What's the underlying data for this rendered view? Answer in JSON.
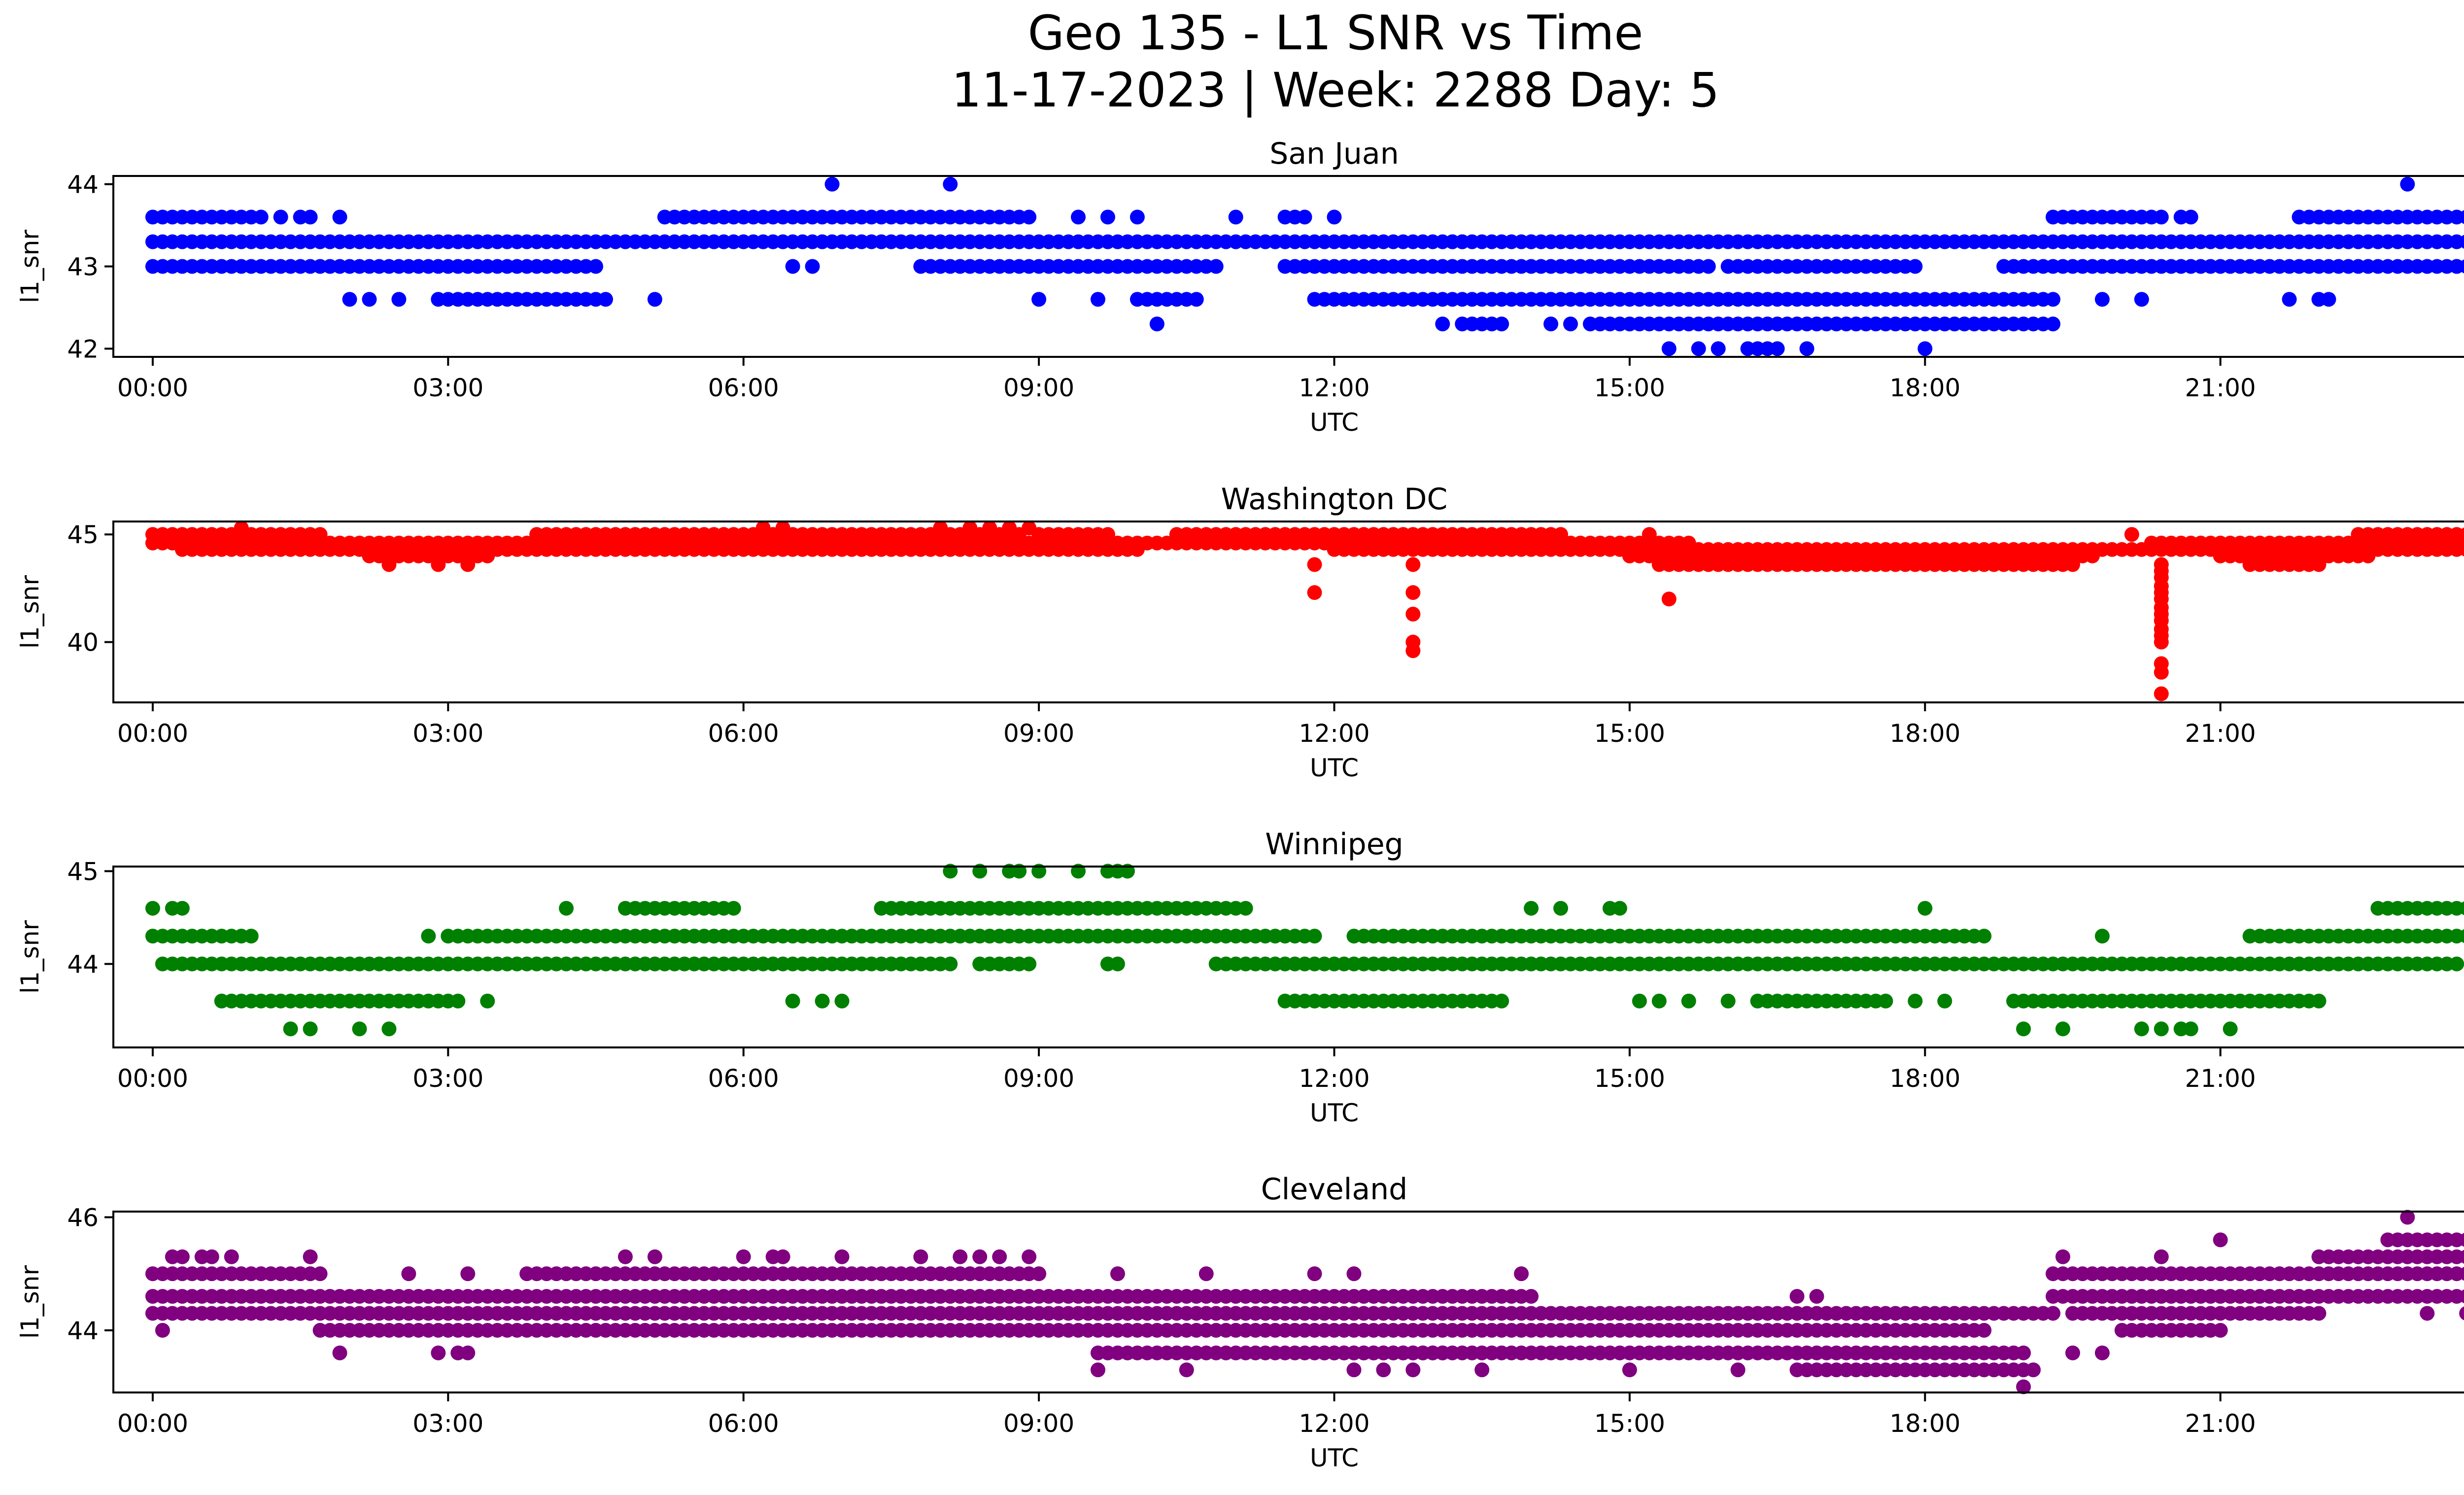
{
  "figure": {
    "title_line1": "Geo 135 - L1 SNR vs Time",
    "title_line2": "11-17-2023 | Week: 2288 Day: 5"
  },
  "chart_data": [
    {
      "type": "scatter",
      "title": "San Juan",
      "xlabel": "UTC",
      "ylabel": "l1_snr",
      "color": "#0000ff",
      "xlim": [
        "-00:24",
        "00:24"
      ],
      "ylim": [
        41.9,
        44.1
      ],
      "xticks": [
        "00:00",
        "03:00",
        "06:00",
        "09:00",
        "12:00",
        "15:00",
        "18:00",
        "21:00",
        "00:00"
      ],
      "yticks": [
        42,
        43,
        44
      ],
      "bands": [
        {
          "y": 43.3,
          "from": "00:00",
          "to": "24:00"
        },
        {
          "y": 43.6,
          "from": "00:00",
          "to": "01:06"
        },
        {
          "y": 43.6,
          "from": "05:12",
          "to": "08:54"
        },
        {
          "y": 43.6,
          "from": "19:18",
          "to": "20:24"
        },
        {
          "y": 43.6,
          "from": "21:48",
          "to": "24:00"
        },
        {
          "y": 43.0,
          "from": "00:00",
          "to": "04:30"
        },
        {
          "y": 43.0,
          "from": "07:48",
          "to": "10:48"
        },
        {
          "y": 43.0,
          "from": "11:30",
          "to": "15:48"
        },
        {
          "y": 43.0,
          "from": "16:00",
          "to": "17:54"
        },
        {
          "y": 43.0,
          "from": "18:48",
          "to": "23:48"
        },
        {
          "y": 42.6,
          "from": "02:54",
          "to": "04:36"
        },
        {
          "y": 42.6,
          "from": "10:00",
          "to": "10:36"
        },
        {
          "y": 42.6,
          "from": "11:48",
          "to": "19:18"
        },
        {
          "y": 42.3,
          "from": "14:36",
          "to": "19:18"
        },
        {
          "y": 42.3,
          "from": "13:18",
          "to": "13:42"
        }
      ],
      "points": [
        {
          "x": "06:54",
          "y": 44.0
        },
        {
          "x": "08:06",
          "y": 44.0
        },
        {
          "x": "22:54",
          "y": 44.0
        },
        {
          "x": "15:24",
          "y": 42.0
        },
        {
          "x": "15:42",
          "y": 42.0
        },
        {
          "x": "15:54",
          "y": 42.0
        },
        {
          "x": "16:12",
          "y": 42.0
        },
        {
          "x": "16:18",
          "y": 42.0
        },
        {
          "x": "16:24",
          "y": 42.0
        },
        {
          "x": "16:30",
          "y": 42.0
        },
        {
          "x": "16:48",
          "y": 42.0
        },
        {
          "x": "18:00",
          "y": 42.0
        },
        {
          "x": "10:12",
          "y": 42.3
        },
        {
          "x": "13:06",
          "y": 42.3
        },
        {
          "x": "14:12",
          "y": 42.3
        },
        {
          "x": "14:24",
          "y": 42.3
        },
        {
          "x": "13:12",
          "y": 43.3
        },
        {
          "x": "13:18",
          "y": 43.3
        },
        {
          "x": "14:00",
          "y": 43.3
        },
        {
          "x": "14:48",
          "y": 43.3
        },
        {
          "x": "09:00",
          "y": 42.6
        },
        {
          "x": "09:36",
          "y": 42.6
        },
        {
          "x": "05:06",
          "y": 42.6
        },
        {
          "x": "02:00",
          "y": 42.6
        },
        {
          "x": "02:12",
          "y": 42.6
        },
        {
          "x": "02:30",
          "y": 42.6
        },
        {
          "x": "19:48",
          "y": 42.6
        },
        {
          "x": "20:12",
          "y": 42.6
        },
        {
          "x": "21:42",
          "y": 42.6
        },
        {
          "x": "22:00",
          "y": 42.6
        },
        {
          "x": "22:06",
          "y": 42.6
        },
        {
          "x": "01:18",
          "y": 43.6
        },
        {
          "x": "01:30",
          "y": 43.6
        },
        {
          "x": "01:36",
          "y": 43.6
        },
        {
          "x": "01:54",
          "y": 43.6
        },
        {
          "x": "09:24",
          "y": 43.6
        },
        {
          "x": "09:42",
          "y": 43.6
        },
        {
          "x": "10:00",
          "y": 43.6
        },
        {
          "x": "11:00",
          "y": 43.6
        },
        {
          "x": "11:30",
          "y": 43.6
        },
        {
          "x": "11:36",
          "y": 43.6
        },
        {
          "x": "11:42",
          "y": 43.6
        },
        {
          "x": "12:00",
          "y": 43.6
        },
        {
          "x": "20:36",
          "y": 43.6
        },
        {
          "x": "20:42",
          "y": 43.6
        },
        {
          "x": "06:30",
          "y": 43.0
        },
        {
          "x": "06:42",
          "y": 43.0
        },
        {
          "x": "23:06",
          "y": 43.0
        },
        {
          "x": "23:24",
          "y": 43.0
        }
      ]
    },
    {
      "type": "scatter",
      "title": "Washington DC",
      "xlabel": "UTC",
      "ylabel": "l1_snr",
      "color": "#ff0000",
      "xlim": [
        "-00:24",
        "00:24"
      ],
      "ylim": [
        37.2,
        45.6
      ],
      "xticks": [
        "00:00",
        "03:00",
        "06:00",
        "09:00",
        "12:00",
        "15:00",
        "18:00",
        "21:00",
        "00:00"
      ],
      "yticks": [
        40,
        45
      ],
      "bands": [
        {
          "y": 45.0,
          "from": "00:00",
          "to": "01:42"
        },
        {
          "y": 45.0,
          "from": "03:54",
          "to": "08:48"
        },
        {
          "y": 45.0,
          "from": "09:00",
          "to": "09:42"
        },
        {
          "y": 45.0,
          "from": "10:24",
          "to": "14:18"
        },
        {
          "y": 45.0,
          "from": "22:24",
          "to": "24:00"
        },
        {
          "y": 44.6,
          "from": "00:00",
          "to": "15:36"
        },
        {
          "y": 44.6,
          "from": "20:18",
          "to": "24:00"
        },
        {
          "y": 44.3,
          "from": "00:18",
          "to": "10:00"
        },
        {
          "y": 44.3,
          "from": "12:00",
          "to": "24:00"
        },
        {
          "y": 44.0,
          "from": "02:12",
          "to": "03:24"
        },
        {
          "y": 44.0,
          "from": "15:00",
          "to": "19:42"
        },
        {
          "y": 44.0,
          "from": "21:00",
          "to": "22:30"
        },
        {
          "y": 43.6,
          "from": "15:18",
          "to": "19:30"
        },
        {
          "y": 43.6,
          "from": "21:18",
          "to": "22:00"
        }
      ],
      "points": [
        {
          "x": "11:48",
          "y": 43.6
        },
        {
          "x": "11:48",
          "y": 42.3
        },
        {
          "x": "12:48",
          "y": 43.6
        },
        {
          "x": "12:48",
          "y": 42.3
        },
        {
          "x": "12:48",
          "y": 41.3
        },
        {
          "x": "12:48",
          "y": 40.0
        },
        {
          "x": "12:48",
          "y": 39.6
        },
        {
          "x": "15:24",
          "y": 42.0
        },
        {
          "x": "20:24",
          "y": 43.6
        },
        {
          "x": "20:24",
          "y": 43.3
        },
        {
          "x": "20:24",
          "y": 43.0
        },
        {
          "x": "20:24",
          "y": 42.6
        },
        {
          "x": "20:24",
          "y": 42.3
        },
        {
          "x": "20:24",
          "y": 42.0
        },
        {
          "x": "20:24",
          "y": 41.6
        },
        {
          "x": "20:24",
          "y": 41.3
        },
        {
          "x": "20:24",
          "y": 41.0
        },
        {
          "x": "20:24",
          "y": 40.6
        },
        {
          "x": "20:24",
          "y": 40.3
        },
        {
          "x": "20:24",
          "y": 40.0
        },
        {
          "x": "20:24",
          "y": 39.0
        },
        {
          "x": "20:24",
          "y": 38.6
        },
        {
          "x": "20:24",
          "y": 37.6
        },
        {
          "x": "00:54",
          "y": 45.3
        },
        {
          "x": "06:12",
          "y": 45.3
        },
        {
          "x": "06:24",
          "y": 45.3
        },
        {
          "x": "08:00",
          "y": 45.3
        },
        {
          "x": "08:18",
          "y": 45.3
        },
        {
          "x": "08:30",
          "y": 45.3
        },
        {
          "x": "08:42",
          "y": 45.3
        },
        {
          "x": "08:54",
          "y": 45.3
        },
        {
          "x": "23:42",
          "y": 45.3
        },
        {
          "x": "02:24",
          "y": 43.6
        },
        {
          "x": "02:54",
          "y": 43.6
        },
        {
          "x": "03:12",
          "y": 43.6
        },
        {
          "x": "15:12",
          "y": 45.0
        },
        {
          "x": "20:06",
          "y": 45.0
        }
      ]
    },
    {
      "type": "scatter",
      "title": "Winnipeg",
      "xlabel": "UTC",
      "ylabel": "l1_snr",
      "color": "#008000",
      "xlim": [
        "-00:24",
        "00:24"
      ],
      "ylim": [
        43.1,
        45.05
      ],
      "xticks": [
        "00:00",
        "03:00",
        "06:00",
        "09:00",
        "12:00",
        "15:00",
        "18:00",
        "21:00",
        "00:00"
      ],
      "yticks": [
        44,
        45
      ],
      "bands": [
        {
          "y": 44.3,
          "from": "00:00",
          "to": "01:00"
        },
        {
          "y": 44.3,
          "from": "03:00",
          "to": "11:48"
        },
        {
          "y": 44.3,
          "from": "12:12",
          "to": "18:36"
        },
        {
          "y": 44.3,
          "from": "21:18",
          "to": "24:00"
        },
        {
          "y": 44.0,
          "from": "00:06",
          "to": "08:06"
        },
        {
          "y": 44.0,
          "from": "08:24",
          "to": "08:54"
        },
        {
          "y": 44.0,
          "from": "10:48",
          "to": "23:24"
        },
        {
          "y": 44.0,
          "from": "23:36",
          "to": "24:00"
        },
        {
          "y": 44.6,
          "from": "04:48",
          "to": "05:54"
        },
        {
          "y": 44.6,
          "from": "07:24",
          "to": "11:06"
        },
        {
          "y": 44.6,
          "from": "22:36",
          "to": "23:54"
        },
        {
          "y": 43.6,
          "from": "00:42",
          "to": "03:06"
        },
        {
          "y": 43.6,
          "from": "11:30",
          "to": "13:42"
        },
        {
          "y": 43.6,
          "from": "18:54",
          "to": "22:00"
        },
        {
          "y": 43.6,
          "from": "16:18",
          "to": "17:36"
        }
      ],
      "points": [
        {
          "x": "00:00",
          "y": 44.6
        },
        {
          "x": "00:12",
          "y": 44.6
        },
        {
          "x": "00:18",
          "y": 44.6
        },
        {
          "x": "04:12",
          "y": 44.6
        },
        {
          "x": "14:00",
          "y": 44.6
        },
        {
          "x": "14:18",
          "y": 44.6
        },
        {
          "x": "14:48",
          "y": 44.6
        },
        {
          "x": "14:54",
          "y": 44.6
        },
        {
          "x": "18:00",
          "y": 44.6
        },
        {
          "x": "08:06",
          "y": 45.0
        },
        {
          "x": "08:24",
          "y": 45.0
        },
        {
          "x": "08:42",
          "y": 45.0
        },
        {
          "x": "08:48",
          "y": 45.0
        },
        {
          "x": "09:00",
          "y": 45.0
        },
        {
          "x": "09:24",
          "y": 45.0
        },
        {
          "x": "09:42",
          "y": 45.0
        },
        {
          "x": "09:48",
          "y": 45.0
        },
        {
          "x": "09:54",
          "y": 45.0
        },
        {
          "x": "01:24",
          "y": 43.3
        },
        {
          "x": "01:36",
          "y": 43.3
        },
        {
          "x": "02:06",
          "y": 43.3
        },
        {
          "x": "02:24",
          "y": 43.3
        },
        {
          "x": "19:00",
          "y": 43.3
        },
        {
          "x": "19:24",
          "y": 43.3
        },
        {
          "x": "20:12",
          "y": 43.3
        },
        {
          "x": "20:24",
          "y": 43.3
        },
        {
          "x": "20:36",
          "y": 43.3
        },
        {
          "x": "20:42",
          "y": 43.3
        },
        {
          "x": "21:06",
          "y": 43.3
        },
        {
          "x": "02:48",
          "y": 44.3
        },
        {
          "x": "19:48",
          "y": 44.3
        },
        {
          "x": "03:24",
          "y": 43.6
        },
        {
          "x": "06:30",
          "y": 43.6
        },
        {
          "x": "06:48",
          "y": 43.6
        },
        {
          "x": "07:00",
          "y": 43.6
        },
        {
          "x": "15:06",
          "y": 43.6
        },
        {
          "x": "15:18",
          "y": 43.6
        },
        {
          "x": "15:36",
          "y": 43.6
        },
        {
          "x": "16:00",
          "y": 43.6
        },
        {
          "x": "17:54",
          "y": 43.6
        },
        {
          "x": "18:12",
          "y": 43.6
        },
        {
          "x": "09:42",
          "y": 44.0
        },
        {
          "x": "09:48",
          "y": 44.0
        }
      ]
    },
    {
      "type": "scatter",
      "title": "Cleveland",
      "xlabel": "UTC",
      "ylabel": "l1_snr",
      "color": "#800080",
      "xlim": [
        "-00:24",
        "00:24"
      ],
      "ylim": [
        42.9,
        46.1
      ],
      "xticks": [
        "00:00",
        "03:00",
        "06:00",
        "09:00",
        "12:00",
        "15:00",
        "18:00",
        "21:00",
        "00:00"
      ],
      "yticks": [
        44,
        46
      ],
      "bands": [
        {
          "y": 44.6,
          "from": "00:00",
          "to": "14:00"
        },
        {
          "y": 44.6,
          "from": "19:18",
          "to": "24:00"
        },
        {
          "y": 44.3,
          "from": "00:00",
          "to": "19:18"
        },
        {
          "y": 44.3,
          "from": "19:30",
          "to": "22:00"
        },
        {
          "y": 44.0,
          "from": "01:42",
          "to": "18:36"
        },
        {
          "y": 44.0,
          "from": "20:00",
          "to": "21:00"
        },
        {
          "y": 45.0,
          "from": "00:00",
          "to": "01:42"
        },
        {
          "y": 45.0,
          "from": "03:48",
          "to": "09:00"
        },
        {
          "y": 45.0,
          "from": "19:18",
          "to": "24:00"
        },
        {
          "y": 43.6,
          "from": "09:36",
          "to": "19:00"
        },
        {
          "y": 43.3,
          "from": "16:42",
          "to": "19:06"
        },
        {
          "y": 45.3,
          "from": "22:00",
          "to": "24:00"
        },
        {
          "y": 45.6,
          "from": "22:42",
          "to": "24:00"
        },
        {
          "y": 43.6,
          "from": "11:54",
          "to": "13:06"
        }
      ],
      "points": [
        {
          "x": "00:12",
          "y": 45.3
        },
        {
          "x": "00:18",
          "y": 45.3
        },
        {
          "x": "00:30",
          "y": 45.3
        },
        {
          "x": "00:36",
          "y": 45.3
        },
        {
          "x": "00:48",
          "y": 45.3
        },
        {
          "x": "01:36",
          "y": 45.3
        },
        {
          "x": "04:48",
          "y": 45.3
        },
        {
          "x": "05:06",
          "y": 45.3
        },
        {
          "x": "06:00",
          "y": 45.3
        },
        {
          "x": "06:18",
          "y": 45.3
        },
        {
          "x": "06:24",
          "y": 45.3
        },
        {
          "x": "07:00",
          "y": 45.3
        },
        {
          "x": "07:48",
          "y": 45.3
        },
        {
          "x": "08:12",
          "y": 45.3
        },
        {
          "x": "08:24",
          "y": 45.3
        },
        {
          "x": "08:36",
          "y": 45.3
        },
        {
          "x": "08:54",
          "y": 45.3
        },
        {
          "x": "19:24",
          "y": 45.3
        },
        {
          "x": "20:24",
          "y": 45.3
        },
        {
          "x": "21:00",
          "y": 45.6
        },
        {
          "x": "22:54",
          "y": 46.0
        },
        {
          "x": "00:06",
          "y": 44.0
        },
        {
          "x": "01:54",
          "y": 43.6
        },
        {
          "x": "02:54",
          "y": 43.6
        },
        {
          "x": "03:06",
          "y": 43.6
        },
        {
          "x": "03:12",
          "y": 43.6
        },
        {
          "x": "02:36",
          "y": 45.0
        },
        {
          "x": "03:12",
          "y": 45.0
        },
        {
          "x": "09:48",
          "y": 45.0
        },
        {
          "x": "10:42",
          "y": 45.0
        },
        {
          "x": "11:48",
          "y": 45.0
        },
        {
          "x": "12:12",
          "y": 45.0
        },
        {
          "x": "13:54",
          "y": 45.0
        },
        {
          "x": "09:36",
          "y": 43.3
        },
        {
          "x": "10:30",
          "y": 43.3
        },
        {
          "x": "12:12",
          "y": 43.3
        },
        {
          "x": "12:30",
          "y": 43.3
        },
        {
          "x": "12:48",
          "y": 43.3
        },
        {
          "x": "13:30",
          "y": 43.3
        },
        {
          "x": "15:00",
          "y": 43.3
        },
        {
          "x": "16:06",
          "y": 43.3
        },
        {
          "x": "19:00",
          "y": 43.0
        },
        {
          "x": "19:30",
          "y": 43.6
        },
        {
          "x": "19:48",
          "y": 43.6
        },
        {
          "x": "17:30",
          "y": 44.3
        },
        {
          "x": "18:18",
          "y": 44.3
        },
        {
          "x": "16:42",
          "y": 44.6
        },
        {
          "x": "16:54",
          "y": 44.6
        },
        {
          "x": "23:06",
          "y": 44.3
        },
        {
          "x": "23:30",
          "y": 44.3
        }
      ]
    }
  ]
}
